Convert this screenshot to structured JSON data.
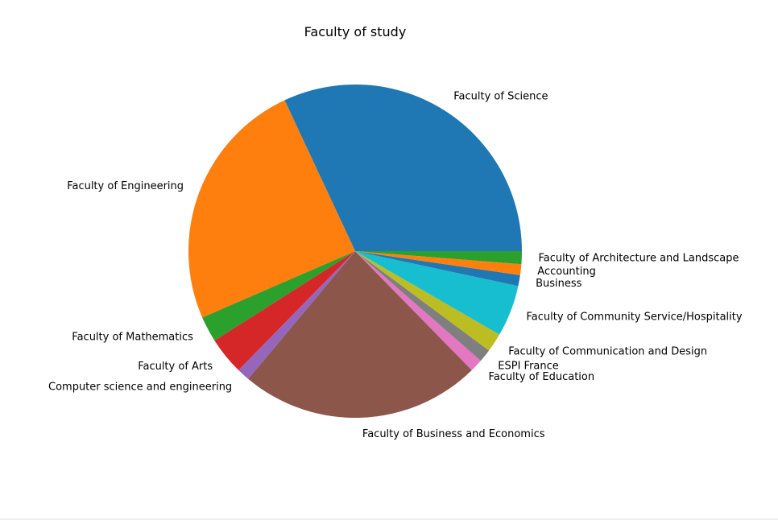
{
  "chart_data": {
    "type": "pie",
    "title": "Faculty of study",
    "start_angle_deg": 0,
    "direction": "counterclockwise",
    "slices": [
      {
        "label": "Faculty of Science",
        "value": 33.3,
        "color": "#1f77b4"
      },
      {
        "label": "Faculty of Engineering",
        "value": 25.6,
        "color": "#ff7f0e"
      },
      {
        "label": "Faculty of Mathematics",
        "value": 2.6,
        "color": "#2ca02c"
      },
      {
        "label": "Faculty of Arts",
        "value": 3.8,
        "color": "#d62728"
      },
      {
        "label": "Computer science and engineering",
        "value": 1.3,
        "color": "#9467bd"
      },
      {
        "label": "Faculty of Business and Economics",
        "value": 24.4,
        "color": "#8c564b"
      },
      {
        "label": "Faculty of Education",
        "value": 1.3,
        "color": "#e377c2"
      },
      {
        "label": "ESPI France",
        "value": 1.3,
        "color": "#7f7f7f"
      },
      {
        "label": "Faculty of Communication and Design",
        "value": 1.9,
        "color": "#bcbd22"
      },
      {
        "label": "Faculty of Community Service/Hospitality",
        "value": 5.2,
        "color": "#17becf"
      },
      {
        "label": "Business",
        "value": 1.1,
        "color": "#1f77b4"
      },
      {
        "label": "Accounting",
        "value": 1.1,
        "color": "#ff7f0e"
      },
      {
        "label": "Faculty of Architecture and Landscape",
        "value": 1.3,
        "color": "#2ca02c"
      }
    ]
  }
}
